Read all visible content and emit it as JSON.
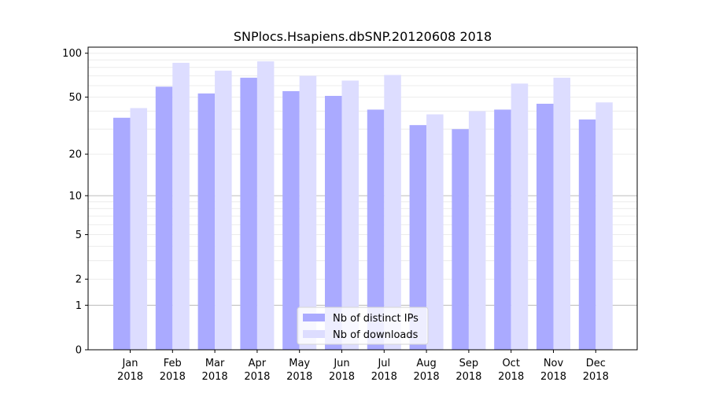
{
  "chart_data": {
    "type": "bar",
    "title": "SNPlocs.Hsapiens.dbSNP.20120608 2018",
    "xlabel": "",
    "ylabel": "",
    "y_scale": "log1p",
    "ylim": [
      0,
      110
    ],
    "y_ticks": [
      0,
      1,
      2,
      5,
      10,
      20,
      50,
      100
    ],
    "categories": [
      [
        "Jan",
        "2018"
      ],
      [
        "Feb",
        "2018"
      ],
      [
        "Mar",
        "2018"
      ],
      [
        "Apr",
        "2018"
      ],
      [
        "May",
        "2018"
      ],
      [
        "Jun",
        "2018"
      ],
      [
        "Jul",
        "2018"
      ],
      [
        "Aug",
        "2018"
      ],
      [
        "Sep",
        "2018"
      ],
      [
        "Oct",
        "2018"
      ],
      [
        "Nov",
        "2018"
      ],
      [
        "Dec",
        "2018"
      ]
    ],
    "series": [
      {
        "name": "Nb of distinct IPs",
        "color": "#aaaaff",
        "values": [
          36,
          59,
          53,
          68,
          55,
          51,
          41,
          32,
          30,
          41,
          45,
          35
        ]
      },
      {
        "name": "Nb of downloads",
        "color": "#ddddff",
        "values": [
          42,
          86,
          76,
          88,
          70,
          65,
          71,
          38,
          40,
          62,
          68,
          46
        ]
      }
    ],
    "grid": true,
    "major_gridlines": [
      1,
      10
    ],
    "legend_position": "bottom-center"
  }
}
